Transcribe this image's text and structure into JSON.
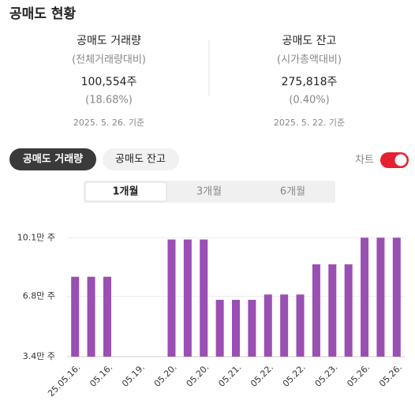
{
  "header": {
    "title": "공매도 현황"
  },
  "summary": [
    {
      "title": "공매도 거래량",
      "subtitle": "(전체거래량대비)",
      "value": "100,554주",
      "ratio": "(18.68%)",
      "date": "2025. 5. 26. 기준"
    },
    {
      "title": "공매도 잔고",
      "subtitle": "(시가총액대비)",
      "value": "275,818주",
      "ratio": "(0.40%)",
      "date": "2025. 5. 22. 기준"
    }
  ],
  "tabs": [
    "공매도 거래량",
    "공매도 잔고"
  ],
  "chart_toggle": "차트",
  "periods": [
    "1개월",
    "3개월",
    "6개월"
  ],
  "chart_data": {
    "type": "bar",
    "categories": [
      "25.05.16.",
      null,
      "05.16.",
      null,
      "05.19.",
      null,
      "05.20.",
      null,
      "05.20.",
      null,
      "05.21.",
      null,
      "05.22.",
      null,
      "05.22.",
      null,
      "05.23.",
      null,
      "05.26.",
      null,
      "05.26."
    ],
    "values": [
      7.9,
      7.9,
      7.9,
      null,
      null,
      null,
      10.0,
      10.0,
      10.0,
      6.6,
      6.6,
      6.6,
      6.9,
      6.9,
      6.9,
      8.6,
      8.6,
      8.6,
      10.1,
      10.1,
      10.1
    ],
    "color": "#9a4fb3",
    "ylim": [
      3.4,
      10.6
    ],
    "yticks": [
      {
        "value": 3.4,
        "label": "3.4만 주"
      },
      {
        "value": 6.8,
        "label": "6.8만 주"
      },
      {
        "value": 10.1,
        "label": "10.1만 주"
      }
    ],
    "grid": true
  }
}
